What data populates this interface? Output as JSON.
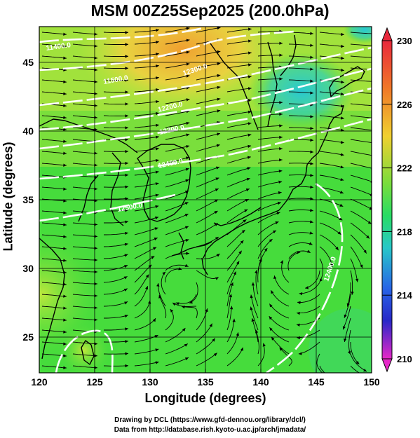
{
  "title": "MSM 00Z25Sep2025 (200.0hPa)",
  "xlabel": "Longitude (degrees)",
  "ylabel": "Latitude  (degrees)",
  "credits": [
    "Drawing by DCL (https://www.gfd-dennou.org/library/dcl/)",
    "Data from http://database.rish.kyoto-u.ac.jp/arch/jmadata/"
  ],
  "chart_data": {
    "type": "heatmap",
    "xlim": [
      120,
      150
    ],
    "ylim": [
      22.4,
      47.6
    ],
    "x_ticks": [
      120,
      125,
      130,
      135,
      140,
      145,
      150
    ],
    "y_ticks": [
      25,
      30,
      35,
      40,
      45
    ],
    "grid": true,
    "colorbar": {
      "range": [
        210,
        230
      ],
      "ticks": [
        230,
        226,
        222,
        218,
        214,
        210
      ]
    },
    "contour_labels": [
      "11400.0",
      "11500.0",
      "12300.0",
      "12200.0",
      "12300.0",
      "12400.0",
      "12500.0",
      "12400.0"
    ],
    "colors": {
      "background_field": "#46dc3c",
      "warm": "#f5c832",
      "cool": "#3cc8c8",
      "contour": "#ffffff",
      "coast": "#000000"
    }
  }
}
